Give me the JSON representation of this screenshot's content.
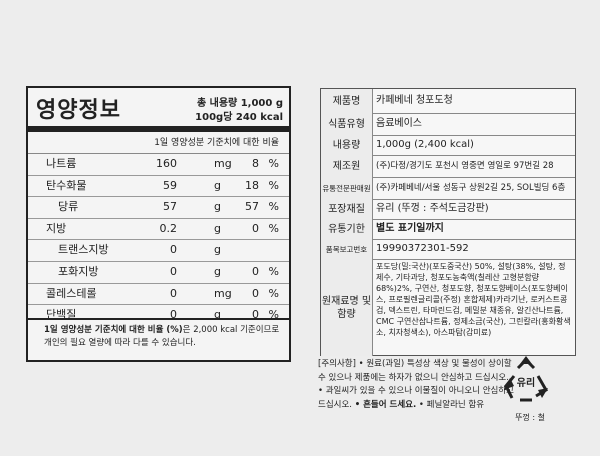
{
  "nutrition": {
    "title": "영양정보",
    "total": "총 내용량 1,000 g",
    "per": "100g당 240 kcal",
    "header": "1일 영양성분 기준치에 대한 비율",
    "rows": [
      {
        "name": "나트륨",
        "amount": "160",
        "unit": "mg",
        "pct": "8",
        "pct_sym": "%"
      },
      {
        "name": "탄수화물",
        "amount": "59",
        "unit": "g",
        "pct": "18",
        "pct_sym": "%"
      },
      {
        "name": "당류",
        "amount": "57",
        "unit": "g",
        "pct": "57",
        "pct_sym": "%"
      },
      {
        "name": "지방",
        "amount": "0.2",
        "unit": "g",
        "pct": "0",
        "pct_sym": "%"
      },
      {
        "name": "트랜스지방",
        "amount": "0",
        "unit": "g",
        "pct": "",
        "pct_sym": ""
      },
      {
        "name": "포화지방",
        "amount": "0",
        "unit": "g",
        "pct": "0",
        "pct_sym": "%"
      },
      {
        "name": "콜레스테롤",
        "amount": "0",
        "unit": "mg",
        "pct": "0",
        "pct_sym": "%"
      },
      {
        "name": "단백질",
        "amount": "0",
        "unit": "g",
        "pct": "0",
        "pct_sym": "%"
      }
    ],
    "footnote_bold": "1일 영양성분 기준치에 대한 비율 (%)",
    "footnote_rest": "은 2,000 kcal 기준이므로",
    "footnote_line2": "개인의 필요 열량에 따라 다를 수 있습니다."
  },
  "info": {
    "rows": [
      {
        "key": "제품명",
        "value": "카페베네 청포도청"
      },
      {
        "key": "식품유형",
        "value": "음료베이스"
      },
      {
        "key": "내용량",
        "value": "1,000g (2,400 kcal)"
      },
      {
        "key": "제조원",
        "value": "(주)다정/경기도 포천시 영중면 영일로 97번길 28"
      },
      {
        "key": "유통전문판매원",
        "value": "(주)카페베네/서울 성동구 상원2길 25, SOL빌딩 6층"
      },
      {
        "key": "포장재질",
        "value": "유리 (뚜껑 : 주석도금강판)"
      },
      {
        "key": "유통기한",
        "value": "별도 표기일까지"
      },
      {
        "key": "품목보고번호",
        "value": "19990372301-592"
      },
      {
        "key": "원재료명 및 함량",
        "value": "포도당(밀:국산)(포도중국산) 50%, 설탕(38%, 설탕, 정제수, 기타과당, 청포도농축액(칠레산 고형분함량68%)2%, 구연산, 청포도향, 청포도향베이스(포도향베이스, 프로필렌글리콜(주정) 혼합제제)카라기난, 로커스트콩검, 덱스트린, 타마린드검, 메밀분 채종유, 알긴산나트륨, CMC 구연산삼나트륨, 정제소금(국산), 그린칼라(홍화황색소, 치자청색소), 아스파탐(감미료)"
      }
    ]
  },
  "caution": {
    "line1": "[주의사항] • 원료(과일) 특성상 색상 및 물성이 상이할",
    "line2": "수 있으나 제품에는 하자가 없으니 안심하고 드십시오.",
    "line3": "• 과일씨가 있을 수 있으나 이물질이 아니오니 안심하고",
    "line4_a": "드십시오.",
    "line4_bold": "• 흔들어 드세요.",
    "line4_c": "• 페닐알라닌 함유"
  },
  "recycle": {
    "mark": "유리",
    "caption": "뚜껑 : 철"
  }
}
